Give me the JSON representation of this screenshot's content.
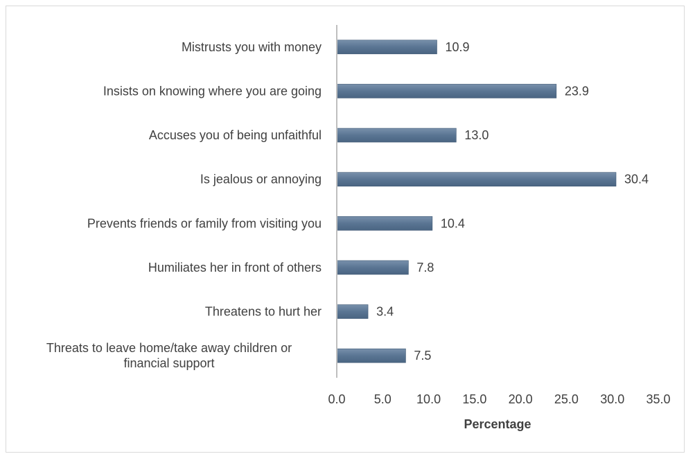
{
  "chart_data": {
    "type": "bar",
    "orientation": "horizontal",
    "categories": [
      "Mistrusts you with money",
      "Insists on knowing where you are going",
      "Accuses you of being unfaithful",
      "Is jealous or annoying",
      "Prevents friends or family from visiting you",
      "Humiliates her in front of others",
      "Threatens to hurt her",
      [
        "Threats to leave home/take away children or",
        "financial support"
      ]
    ],
    "values": [
      10.9,
      23.9,
      13.0,
      30.4,
      10.4,
      7.8,
      3.4,
      7.5
    ],
    "value_labels": [
      "10.9",
      "23.9",
      "13.0",
      "30.4",
      "10.4",
      "7.8",
      "3.4",
      "7.5"
    ],
    "xlabel": "Percentage",
    "xlim": [
      0,
      35
    ],
    "xticks": [
      "0.0",
      "5.0",
      "10.0",
      "15.0",
      "20.0",
      "25.0",
      "30.0",
      "35.0"
    ],
    "grid": false,
    "legend": "none",
    "colors": {
      "bar": "#5a7593",
      "bar_edge": "#3e5873",
      "axis": "#bfbfbf",
      "text": "#404040"
    }
  }
}
